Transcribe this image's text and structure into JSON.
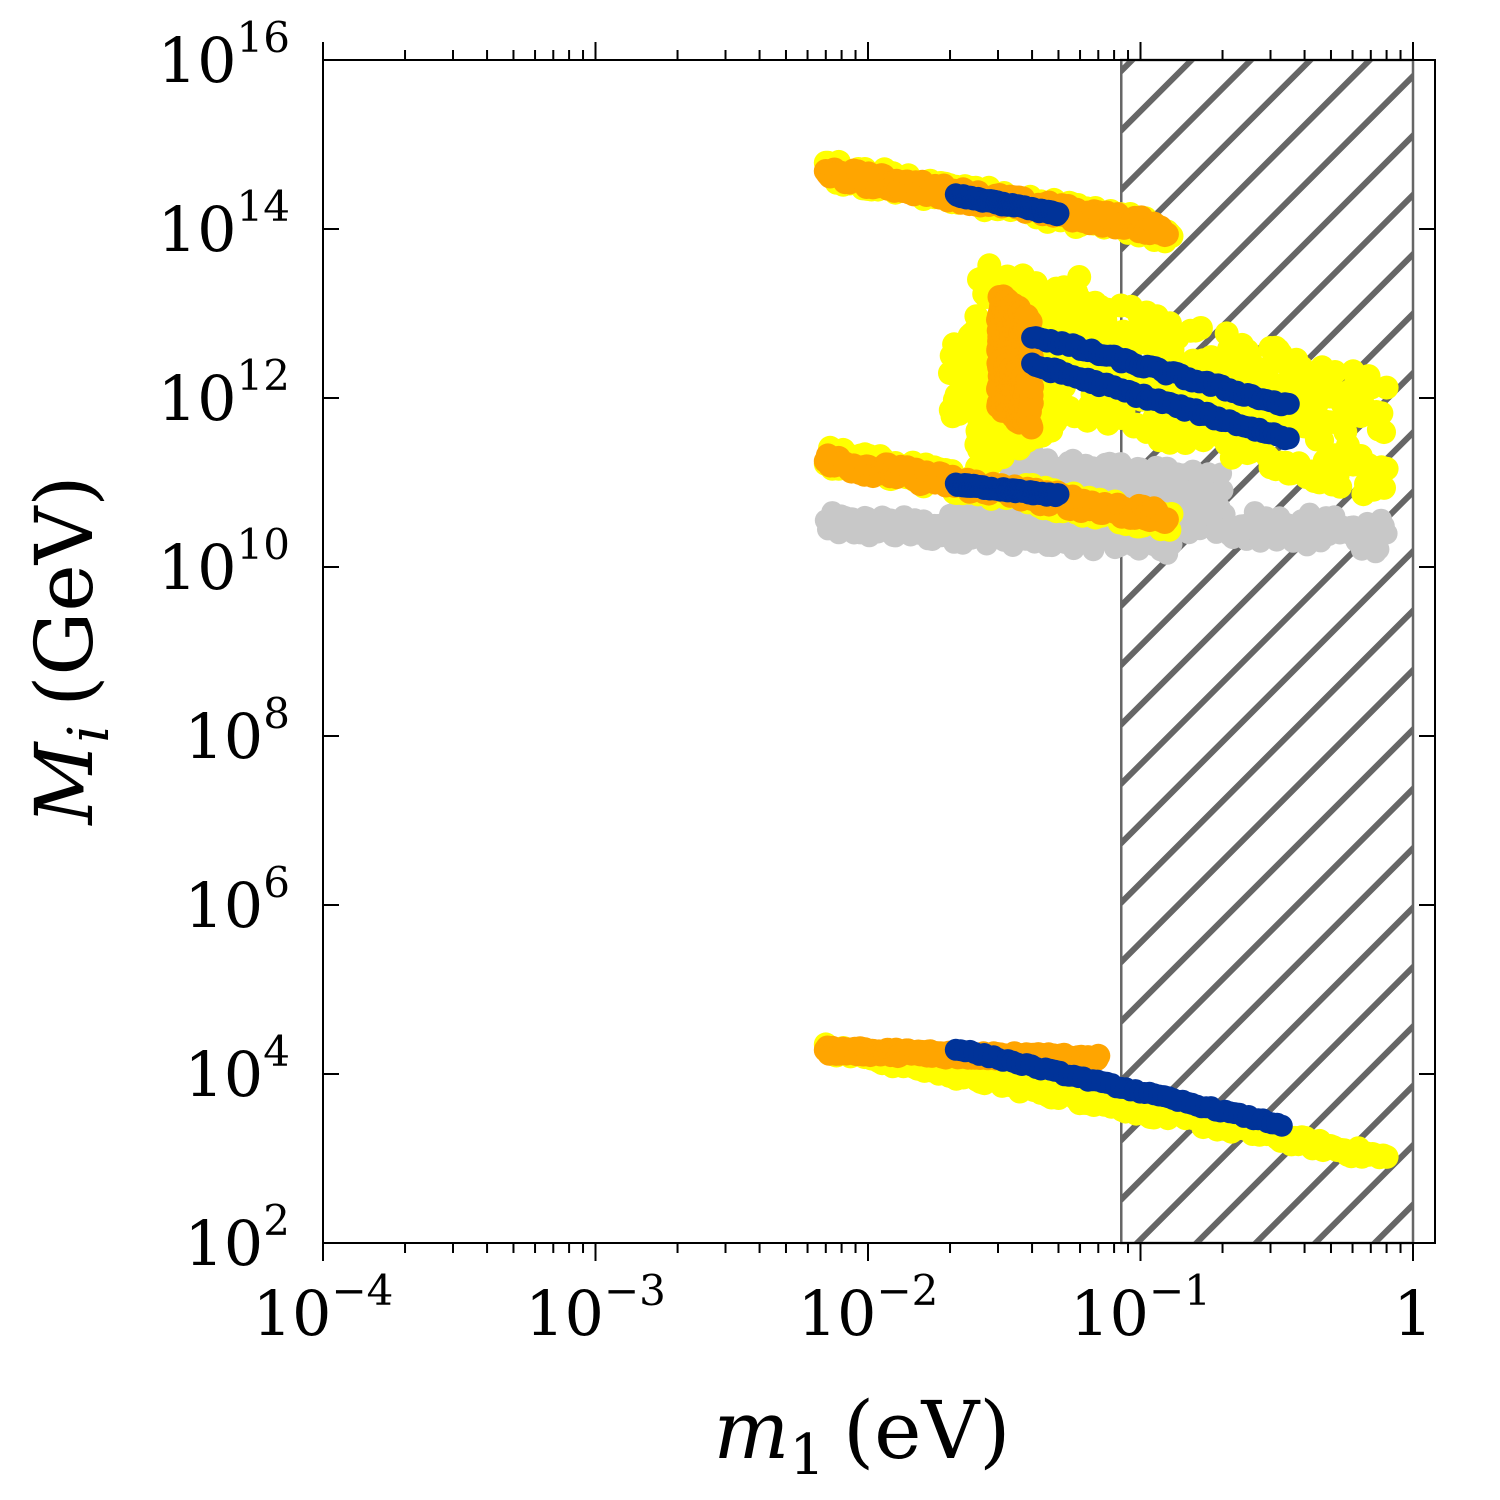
{
  "chart_data": {
    "type": "scatter",
    "title": "",
    "x_scale": "log",
    "y_scale": "log",
    "xlim": [
      0.0001,
      1.2
    ],
    "ylim": [
      100,
      1e+16
    ],
    "xlabel": {
      "var": "m",
      "sub": "1",
      "unit": "(eV)"
    },
    "ylabel": {
      "var": "M",
      "sub": "i",
      "unit": "(GeV)"
    },
    "x_ticks": [
      {
        "value": 0.0001,
        "base": "10",
        "exp": "−4"
      },
      {
        "value": 0.001,
        "base": "10",
        "exp": "−3"
      },
      {
        "value": 0.01,
        "base": "10",
        "exp": "−2"
      },
      {
        "value": 0.1,
        "base": "10",
        "exp": "−1"
      },
      {
        "value": 1,
        "base": "1",
        "exp": ""
      }
    ],
    "y_ticks": [
      {
        "value": 100,
        "base": "10",
        "exp": "2"
      },
      {
        "value": 10000,
        "base": "10",
        "exp": "4"
      },
      {
        "value": 1000000,
        "base": "10",
        "exp": "6"
      },
      {
        "value": 100000000,
        "base": "10",
        "exp": "8"
      },
      {
        "value": 10000000000,
        "base": "10",
        "exp": "10"
      },
      {
        "value": 1000000000000,
        "base": "10",
        "exp": "12"
      },
      {
        "value": 100000000000000,
        "base": "10",
        "exp": "14"
      },
      {
        "value": 10000000000000000,
        "base": "10",
        "exp": "16"
      }
    ],
    "excluded_region": {
      "x_from": 0.085,
      "x_to": 1.0,
      "pattern": "hatched",
      "color": "#666666"
    },
    "colors": {
      "gray": "#c8c8c8",
      "yellow": "#ffff00",
      "orange": "#ffa500",
      "blue": "#003399"
    },
    "series": [
      {
        "name": "gray",
        "color": "#c8c8c8",
        "bands": [
          {
            "x0": 0.007,
            "x1": 0.13,
            "y0": 32000000000.0,
            "y1": 20000000000.0,
            "dex": 0.15
          },
          {
            "x0": 0.02,
            "x1": 0.8,
            "y0": 60000000000.0,
            "y1": 23000000000.0,
            "dex": 0.2
          },
          {
            "x0": 0.03,
            "x1": 0.2,
            "y0": 150000000000.0,
            "y1": 80000000000.0,
            "dex": 0.22
          }
        ]
      },
      {
        "name": "yellow",
        "color": "#ffff00",
        "bands": [
          {
            "x0": 0.007,
            "x1": 0.13,
            "y0": 500000000000000.0,
            "y1": 90000000000000.0,
            "dex": 0.14
          },
          {
            "x0": 0.007,
            "x1": 0.13,
            "y0": 200000000000.0,
            "y1": 35000000000.0,
            "dex": 0.14
          },
          {
            "x0": 0.007,
            "x1": 0.8,
            "y0": 20000.0,
            "y1": 1000.0,
            "dex": 0.06
          },
          {
            "x0": 0.025,
            "x1": 0.8,
            "y0": 20000000000000.0,
            "y1": 700000000000.0,
            "dex": 0.38
          },
          {
            "x0": 0.025,
            "x1": 0.8,
            "y0": 3000000000000.0,
            "y1": 150000000000.0,
            "dex": 0.4
          },
          {
            "x0": 0.02,
            "x1": 0.06,
            "y0": 1500000000000.0,
            "y1": 10000000000000.0,
            "dex": 0.45
          },
          {
            "x0": 0.025,
            "x1": 0.05,
            "y0": 300000000000.0,
            "y1": 1000000000000.0,
            "dex": 0.35
          }
        ]
      },
      {
        "name": "orange",
        "color": "#ffa500",
        "bands": [
          {
            "x0": 0.007,
            "x1": 0.125,
            "y0": 460000000000000.0,
            "y1": 100000000000000.0,
            "dex": 0.09
          },
          {
            "x0": 0.007,
            "x1": 0.125,
            "y0": 180000000000.0,
            "y1": 38000000000.0,
            "dex": 0.09
          },
          {
            "x0": 0.007,
            "x1": 0.07,
            "y0": 19000.0,
            "y1": 15000.0,
            "dex": 0.04
          },
          {
            "x0": 0.03,
            "x1": 0.04,
            "y0": 8000000000000.0,
            "y1": 4000000000000.0,
            "dex": 0.35
          },
          {
            "x0": 0.03,
            "x1": 0.04,
            "y0": 1500000000000.0,
            "y1": 800000000000.0,
            "dex": 0.3
          }
        ]
      },
      {
        "name": "blue",
        "color": "#003399",
        "bands": [
          {
            "x0": 0.021,
            "x1": 0.05,
            "y0": 250000000000000.0,
            "y1": 150000000000000.0,
            "dex": 0.02
          },
          {
            "x0": 0.021,
            "x1": 0.05,
            "y0": 95000000000.0,
            "y1": 70000000000.0,
            "dex": 0.02
          },
          {
            "x0": 0.04,
            "x1": 0.35,
            "y0": 5500000000000.0,
            "y1": 800000000000.0,
            "dex": 0.03
          },
          {
            "x0": 0.04,
            "x1": 0.35,
            "y0": 2500000000000.0,
            "y1": 330000000000.0,
            "dex": 0.03
          },
          {
            "x0": 0.021,
            "x1": 0.33,
            "y0": 20000.0,
            "y1": 2500.0,
            "dex": 0.015
          }
        ]
      }
    ]
  }
}
